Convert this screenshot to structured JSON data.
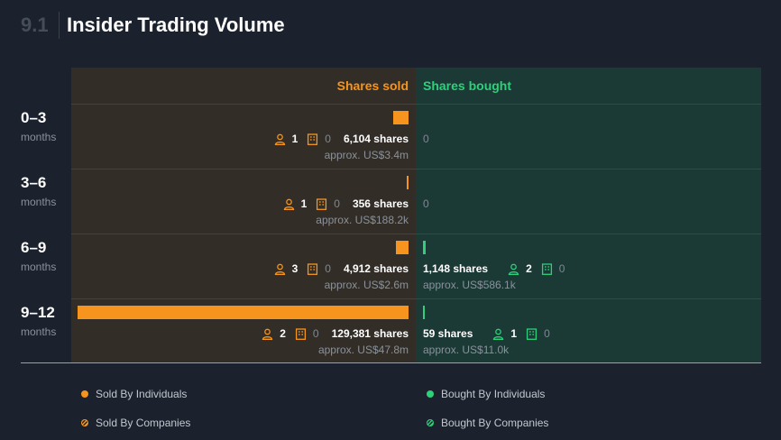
{
  "section": {
    "number": "9.1",
    "title": "Insider Trading Volume"
  },
  "colors": {
    "sold": "#f7941d",
    "bought": "#2ed079"
  },
  "chart_data": {
    "type": "bar",
    "orientation": "horizontal-diverging",
    "columns": {
      "sold": "Shares sold",
      "bought": "Shares bought"
    },
    "rows": [
      {
        "range": "0–3",
        "unit": "months",
        "sold": {
          "shares": 6104,
          "shares_label": "6,104 shares",
          "individuals": "1",
          "companies": "0",
          "approx": "approx. US$3.4m"
        },
        "bought": {
          "shares": 0,
          "shares_label": "0",
          "individuals": "",
          "companies": "",
          "approx": ""
        }
      },
      {
        "range": "3–6",
        "unit": "months",
        "sold": {
          "shares": 356,
          "shares_label": "356 shares",
          "individuals": "1",
          "companies": "0",
          "approx": "approx. US$188.2k"
        },
        "bought": {
          "shares": 0,
          "shares_label": "0",
          "individuals": "",
          "companies": "",
          "approx": ""
        }
      },
      {
        "range": "6–9",
        "unit": "months",
        "sold": {
          "shares": 4912,
          "shares_label": "4,912 shares",
          "individuals": "3",
          "companies": "0",
          "approx": "approx. US$2.6m"
        },
        "bought": {
          "shares": 1148,
          "shares_label": "1,148 shares",
          "individuals": "2",
          "companies": "0",
          "approx": "approx. US$586.1k"
        }
      },
      {
        "range": "9–12",
        "unit": "months",
        "sold": {
          "shares": 129381,
          "shares_label": "129,381 shares",
          "individuals": "2",
          "companies": "0",
          "approx": "approx. US$47.8m"
        },
        "bought": {
          "shares": 59,
          "shares_label": "59 shares",
          "individuals": "1",
          "companies": "0",
          "approx": "approx. US$11.0k"
        }
      }
    ],
    "legend": [
      {
        "label": "Sold By Individuals",
        "color": "#f7941d"
      },
      {
        "label": "Sold By Companies",
        "color": "#f7941d"
      },
      {
        "label": "Bought By Individuals",
        "color": "#2ed079"
      },
      {
        "label": "Bought By Companies",
        "color": "#2ed079"
      }
    ]
  }
}
